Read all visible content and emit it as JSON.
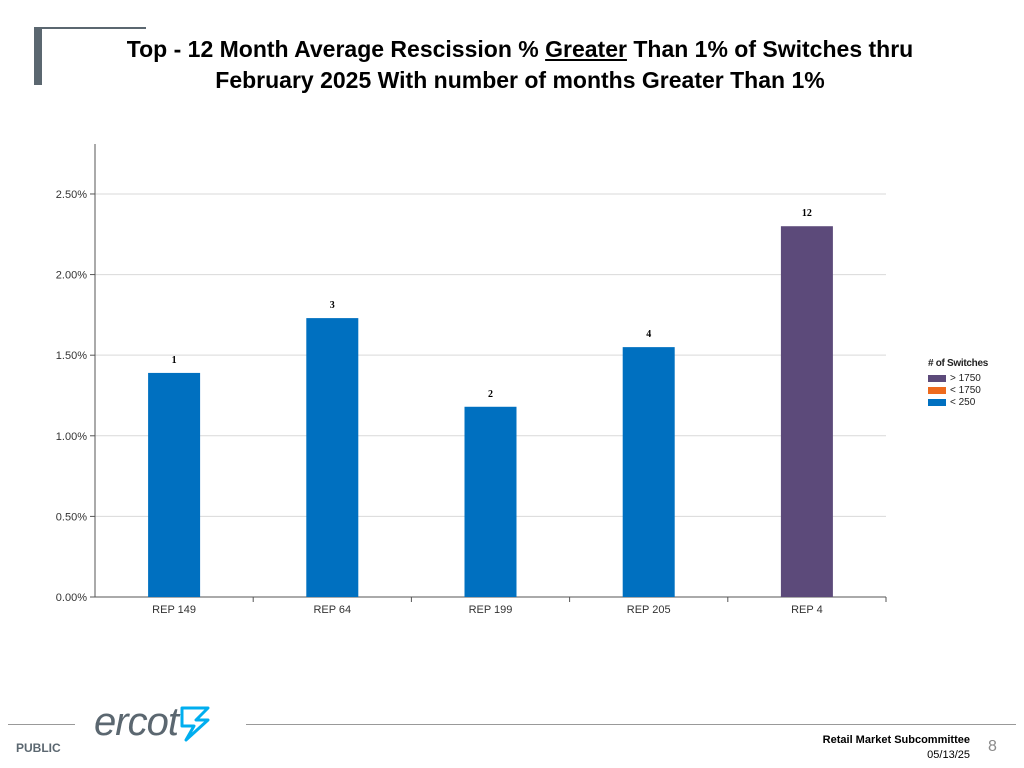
{
  "slide": {
    "title_pre": "Top - 12 Month Average Rescission % ",
    "title_underlined": "Greater",
    "title_post": " Than 1% of Switches thru February 2025 With number of months Greater Than 1%"
  },
  "chart_data": {
    "type": "bar",
    "categories": [
      "REP 149",
      "REP 64",
      "REP 199",
      "REP 205",
      "REP 4"
    ],
    "values": [
      1.39,
      1.73,
      1.18,
      1.55,
      2.3
    ],
    "bar_labels": [
      "1",
      "3",
      "2",
      "4",
      "12"
    ],
    "bar_groups": [
      "< 250",
      "< 250",
      "< 250",
      "< 250",
      "> 1750"
    ],
    "yticks": [
      0,
      0.5,
      1.0,
      1.5,
      2.0,
      2.5
    ],
    "ytick_labels": [
      "0.00%",
      "0.50%",
      "1.00%",
      "1.50%",
      "2.00%",
      "2.50%"
    ],
    "ylim": [
      0,
      2.81
    ],
    "grid": true,
    "legend": {
      "title": "# of Switches",
      "position": "right",
      "items": [
        {
          "label": "> 1750",
          "color": "#5c4a7a"
        },
        {
          "label": "< 1750",
          "color": "#ee6a1d"
        },
        {
          "label": "< 250",
          "color": "#0070c0"
        }
      ]
    }
  },
  "footer": {
    "public": "PUBLIC",
    "logo": "ercot",
    "committee": "Retail Market Subcommittee",
    "date": "05/13/25",
    "page": "8"
  }
}
